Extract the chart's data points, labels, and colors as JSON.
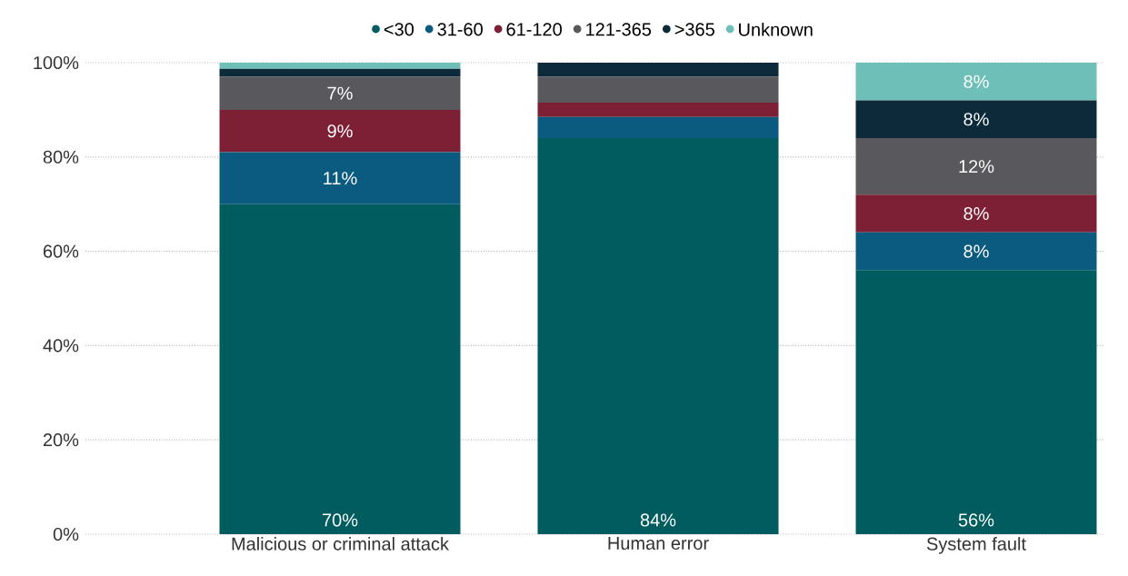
{
  "chart_data": {
    "type": "bar",
    "stacked": true,
    "categories": [
      "Malicious or criminal attack",
      "Human error",
      "System fault"
    ],
    "series": [
      {
        "name": "<30",
        "color": "#005c5e",
        "values": [
          70,
          84,
          56
        ],
        "value_labels": [
          "70%",
          "84%",
          "56%"
        ]
      },
      {
        "name": "31-60",
        "color": "#0b5a80",
        "values": [
          11,
          4.5,
          8
        ],
        "value_labels": [
          "11%",
          null,
          "8%"
        ]
      },
      {
        "name": "61-120",
        "color": "#7d1f35",
        "values": [
          9,
          3,
          8
        ],
        "value_labels": [
          "9%",
          null,
          "8%"
        ]
      },
      {
        "name": "121-365",
        "color": "#59585c",
        "values": [
          7,
          5.5,
          12
        ],
        "value_labels": [
          "7%",
          null,
          "12%"
        ]
      },
      {
        "name": ">365",
        "color": "#0c2a3a",
        "values": [
          1.7,
          3,
          8
        ],
        "value_labels": [
          null,
          null,
          "8%"
        ]
      },
      {
        "name": "Unknown",
        "color": "#6dbfb8",
        "values": [
          1.3,
          0,
          8
        ],
        "value_labels": [
          null,
          null,
          "8%"
        ]
      }
    ],
    "ylim": [
      0,
      100
    ],
    "yticks": [
      {
        "value": 0,
        "label": "0%"
      },
      {
        "value": 20,
        "label": "20%"
      },
      {
        "value": 40,
        "label": "40%"
      },
      {
        "value": 60,
        "label": "60%"
      },
      {
        "value": 80,
        "label": "80%"
      },
      {
        "value": 100,
        "label": "100%"
      }
    ],
    "grid": "y",
    "legend": "top",
    "marker": "circle"
  }
}
